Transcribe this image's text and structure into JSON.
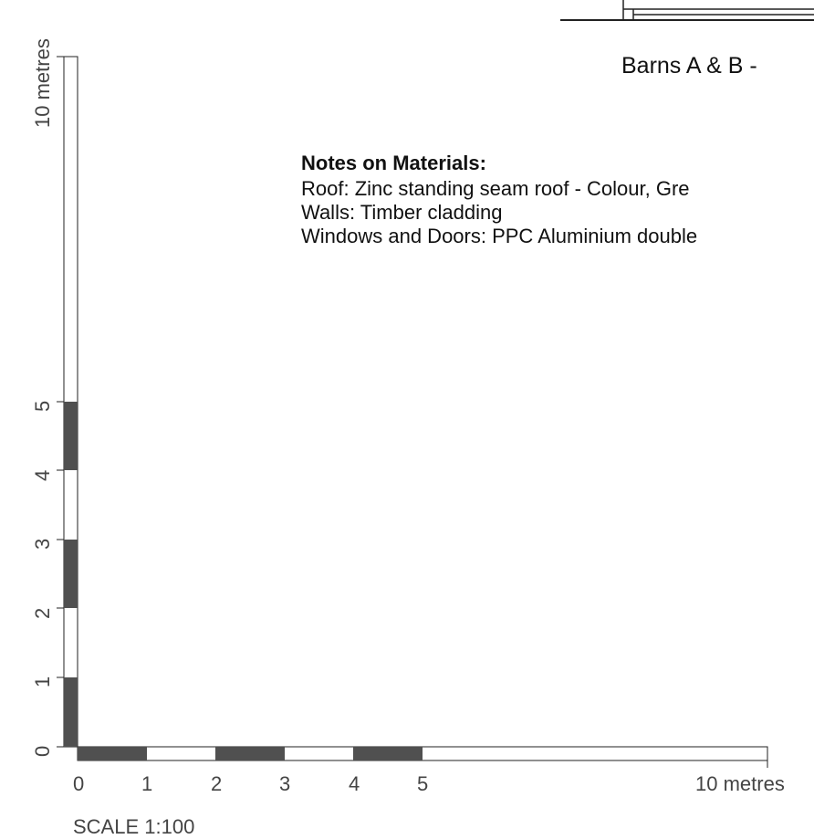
{
  "title": "Barns A & B  -",
  "notes": {
    "heading": "Notes on Materials:",
    "lines": [
      "Roof: Zinc standing seam roof - Colour, Gre",
      "Walls: Timber cladding",
      "Windows and Doors: PPC Aluminium double"
    ]
  },
  "scale_bar": {
    "caption": "SCALE 1:100",
    "horizontal": {
      "tick_labels": [
        "0",
        "1",
        "2",
        "3",
        "4",
        "5",
        "10 metres"
      ]
    },
    "vertical": {
      "tick_labels": [
        "0",
        "1",
        "2",
        "3",
        "4",
        "5",
        "10 metres"
      ]
    },
    "fill_color": "#505050"
  }
}
